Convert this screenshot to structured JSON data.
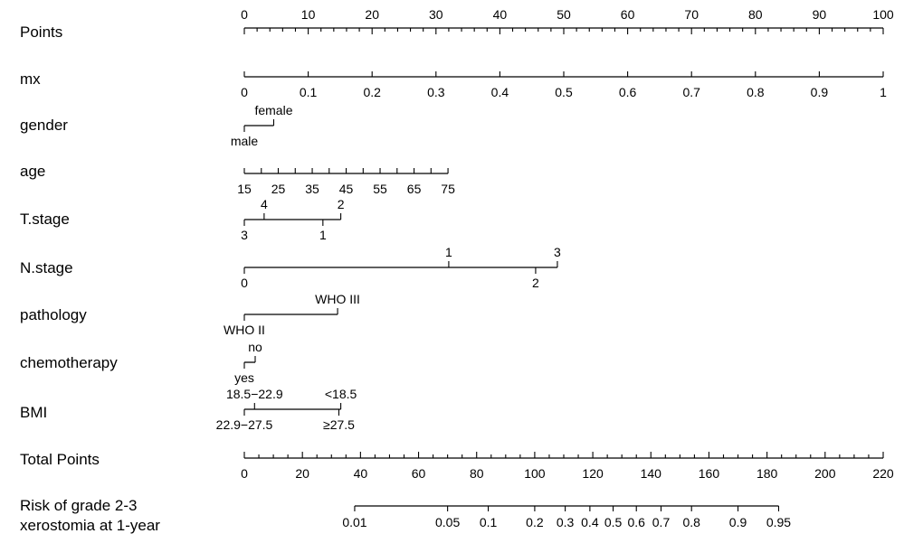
{
  "chart_data": {
    "type": "nomogram",
    "rows": [
      {
        "id": "points",
        "label": "Points",
        "ticks": [
          {
            "v": 0,
            "t": "0"
          },
          {
            "v": 10,
            "t": "10"
          },
          {
            "v": 20,
            "t": "20"
          },
          {
            "v": 30,
            "t": "30"
          },
          {
            "v": 40,
            "t": "40"
          },
          {
            "v": 50,
            "t": "50"
          },
          {
            "v": 60,
            "t": "60"
          },
          {
            "v": 70,
            "t": "70"
          },
          {
            "v": 80,
            "t": "80"
          },
          {
            "v": 90,
            "t": "90"
          },
          {
            "v": 100,
            "t": "100"
          }
        ]
      },
      {
        "id": "mx",
        "label": "mx",
        "ticks": [
          {
            "value": "0",
            "points": 0
          },
          {
            "value": "0.1",
            "points": 10
          },
          {
            "value": "0.2",
            "points": 20
          },
          {
            "value": "0.3",
            "points": 30
          },
          {
            "value": "0.4",
            "points": 40
          },
          {
            "value": "0.5",
            "points": 50
          },
          {
            "value": "0.6",
            "points": 60
          },
          {
            "value": "0.7",
            "points": 70
          },
          {
            "value": "0.8",
            "points": 80
          },
          {
            "value": "0.9",
            "points": 90
          },
          {
            "value": "1",
            "points": 100
          }
        ]
      },
      {
        "id": "gender",
        "label": "gender",
        "ticks": [
          {
            "value": "male",
            "points": 0,
            "side": "below"
          },
          {
            "value": "female",
            "points": 4.6,
            "side": "above"
          }
        ]
      },
      {
        "id": "age",
        "label": "age",
        "ticks": [
          {
            "value": "15",
            "points": 0
          },
          {
            "value": "20",
            "points": 2.66
          },
          {
            "value": "25",
            "points": 5.31
          },
          {
            "value": "30",
            "points": 7.97
          },
          {
            "value": "35",
            "points": 10.63
          },
          {
            "value": "40",
            "points": 13.28
          },
          {
            "value": "45",
            "points": 15.94
          },
          {
            "value": "50",
            "points": 18.6
          },
          {
            "value": "55",
            "points": 21.25
          },
          {
            "value": "60",
            "points": 23.91
          },
          {
            "value": "65",
            "points": 26.57
          },
          {
            "value": "70",
            "points": 29.22
          },
          {
            "value": "75",
            "points": 31.88
          }
        ],
        "labeled": [
          "15",
          "25",
          "35",
          "45",
          "55",
          "65",
          "75"
        ]
      },
      {
        "id": "tstage",
        "label": "T.stage",
        "ticks": [
          {
            "value": "3",
            "points": 0,
            "side": "below"
          },
          {
            "value": "4",
            "points": 3.1,
            "side": "above"
          },
          {
            "value": "1",
            "points": 12.3,
            "side": "below"
          },
          {
            "value": "2",
            "points": 15.1,
            "side": "above"
          }
        ]
      },
      {
        "id": "nstage",
        "label": "N.stage",
        "ticks": [
          {
            "value": "0",
            "points": 0,
            "side": "below"
          },
          {
            "value": "1",
            "points": 32.0,
            "side": "above"
          },
          {
            "value": "2",
            "points": 45.6,
            "side": "below"
          },
          {
            "value": "3",
            "points": 49.0,
            "side": "above"
          }
        ]
      },
      {
        "id": "pathology",
        "label": "pathology",
        "ticks": [
          {
            "value": "WHO II",
            "points": 0,
            "side": "below"
          },
          {
            "value": "WHO III",
            "points": 14.6,
            "side": "above"
          }
        ]
      },
      {
        "id": "chemotherapy",
        "label": "chemotherapy",
        "ticks": [
          {
            "value": "yes",
            "points": 0,
            "side": "below"
          },
          {
            "value": "no",
            "points": 1.7,
            "side": "above"
          }
        ]
      },
      {
        "id": "bmi",
        "label": "BMI",
        "ticks": [
          {
            "value": "22.9−27.5",
            "points": 0,
            "side": "below"
          },
          {
            "value": "18.5−22.9",
            "points": 1.6,
            "side": "above"
          },
          {
            "value": "≥27.5",
            "points": 14.8,
            "side": "below"
          },
          {
            "value": "<18.5",
            "points": 15.1,
            "side": "above"
          }
        ]
      },
      {
        "id": "total",
        "label": "Total Points",
        "ticks": [
          {
            "v": 0,
            "t": "0"
          },
          {
            "v": 20,
            "t": "20"
          },
          {
            "v": 40,
            "t": "40"
          },
          {
            "v": 60,
            "t": "60"
          },
          {
            "v": 80,
            "t": "80"
          },
          {
            "v": 100,
            "t": "100"
          },
          {
            "v": 120,
            "t": "120"
          },
          {
            "v": 140,
            "t": "140"
          },
          {
            "v": 160,
            "t": "160"
          },
          {
            "v": 180,
            "t": "180"
          },
          {
            "v": 200,
            "t": "200"
          },
          {
            "v": 220,
            "t": "220"
          }
        ]
      },
      {
        "id": "risk",
        "label": [
          "Risk of grade 2-3",
          "xerostomia at 1-year"
        ],
        "ticks": [
          {
            "value": "0.01",
            "total_points": 38.0
          },
          {
            "value": "0.05",
            "total_points": 70.0
          },
          {
            "value": "0.1",
            "total_points": 84.0
          },
          {
            "value": "0.2",
            "total_points": 100.0
          },
          {
            "value": "0.3",
            "total_points": 110.5
          },
          {
            "value": "0.4",
            "total_points": 119.0
          },
          {
            "value": "0.5",
            "total_points": 127.0
          },
          {
            "value": "0.6",
            "total_points": 135.0
          },
          {
            "value": "0.7",
            "total_points": 143.5
          },
          {
            "value": "0.8",
            "total_points": 154.0
          },
          {
            "value": "0.9",
            "total_points": 170.0
          },
          {
            "value": "0.95",
            "total_points": 184.0
          }
        ]
      }
    ],
    "points_range": [
      0,
      100
    ],
    "total_points_range": [
      0,
      220
    ]
  }
}
